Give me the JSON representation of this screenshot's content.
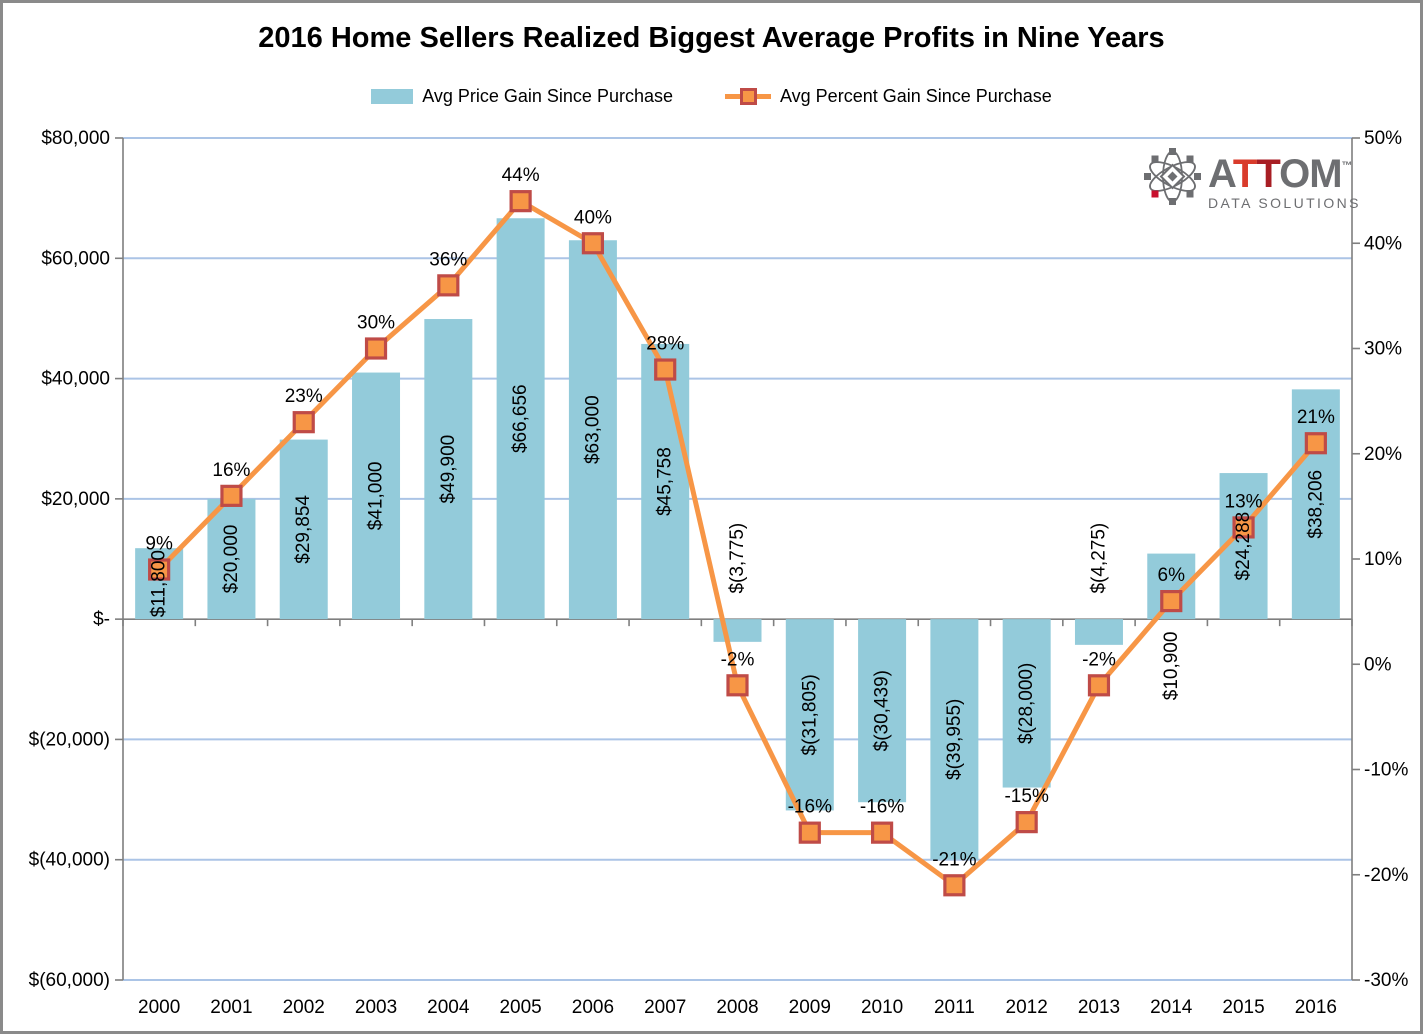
{
  "title": "2016 Home Sellers Realized Biggest Average Profits in Nine Years",
  "legend": [
    {
      "label": "Avg Price Gain Since Purchase",
      "type": "bar"
    },
    {
      "label": "Avg Percent Gain Since Purchase",
      "type": "line"
    }
  ],
  "logo": {
    "part_a": "A",
    "part_t1": "T",
    "part_t2": "T",
    "part_om": "OM",
    "tm": "™",
    "subtitle": "DATA SOLUTIONS"
  },
  "colors": {
    "bar": "#93CBDA",
    "line": "#F79646",
    "marker_fill": "#F79646",
    "marker_border": "#BF4B47",
    "grid": "#ABC4E6",
    "axis": "#7F7F7F",
    "text": "#000000",
    "logo_gray": "#6D6E71",
    "logo_red1": "#D93B2B",
    "logo_red2": "#A81E24",
    "logo_accent_red": "#C8102E"
  },
  "chart_data": {
    "type": "combo",
    "title": "2016 Home Sellers Realized Biggest Average Profits in Nine Years",
    "categories": [
      "2000",
      "2001",
      "2002",
      "2003",
      "2004",
      "2005",
      "2006",
      "2007",
      "2008",
      "2009",
      "2010",
      "2011",
      "2012",
      "2013",
      "2014",
      "2015",
      "2016"
    ],
    "series": [
      {
        "name": "Avg Price Gain Since Purchase",
        "type": "bar",
        "axis": "left",
        "values": [
          11800,
          20000,
          29854,
          41000,
          49900,
          66656,
          63000,
          45758,
          -3775,
          -31805,
          -30439,
          -39955,
          -28000,
          -4275,
          10900,
          24288,
          38206
        ],
        "labels": [
          "$11,800",
          "$20,000",
          "$29,854",
          "$41,000",
          "$49,900",
          "$66,656",
          "$63,000",
          "$45,758",
          "$(3,775)",
          "$(31,805)",
          "$(30,439)",
          "$(39,955)",
          "$(28,000)",
          "$(4,275)",
          "$10,900",
          "$24,288",
          "$38,206"
        ]
      },
      {
        "name": "Avg Percent Gain Since Purchase",
        "type": "line",
        "axis": "right",
        "values": [
          9,
          16,
          23,
          30,
          36,
          44,
          40,
          28,
          -2,
          -16,
          -16,
          -21,
          -15,
          -2,
          6,
          13,
          21
        ],
        "labels": [
          "9%",
          "16%",
          "23%",
          "30%",
          "36%",
          "44%",
          "40%",
          "28%",
          "-2%",
          "-16%",
          "-16%",
          "-21%",
          "-15%",
          "-2%",
          "6%",
          "13%",
          "21%"
        ]
      }
    ],
    "left_axis": {
      "min": -60000,
      "max": 80000,
      "step": 20000,
      "ticks": [
        {
          "v": 80000,
          "label": "$80,000"
        },
        {
          "v": 60000,
          "label": "$60,000"
        },
        {
          "v": 40000,
          "label": "$40,000"
        },
        {
          "v": 20000,
          "label": "$20,000"
        },
        {
          "v": 0,
          "label": "$-"
        },
        {
          "v": -20000,
          "label": "$(20,000)"
        },
        {
          "v": -40000,
          "label": "$(40,000)"
        },
        {
          "v": -60000,
          "label": "$(60,000)"
        }
      ]
    },
    "right_axis": {
      "min": -30,
      "max": 50,
      "step": 10,
      "ticks": [
        {
          "v": 50,
          "label": "50%"
        },
        {
          "v": 40,
          "label": "40%"
        },
        {
          "v": 30,
          "label": "30%"
        },
        {
          "v": 20,
          "label": "20%"
        },
        {
          "v": 10,
          "label": "10%"
        },
        {
          "v": 0,
          "label": "0%"
        },
        {
          "v": -10,
          "label": "-10%"
        },
        {
          "v": -20,
          "label": "-20%"
        },
        {
          "v": -30,
          "label": "-30%"
        }
      ]
    },
    "grid": true,
    "legend_position": "top"
  }
}
